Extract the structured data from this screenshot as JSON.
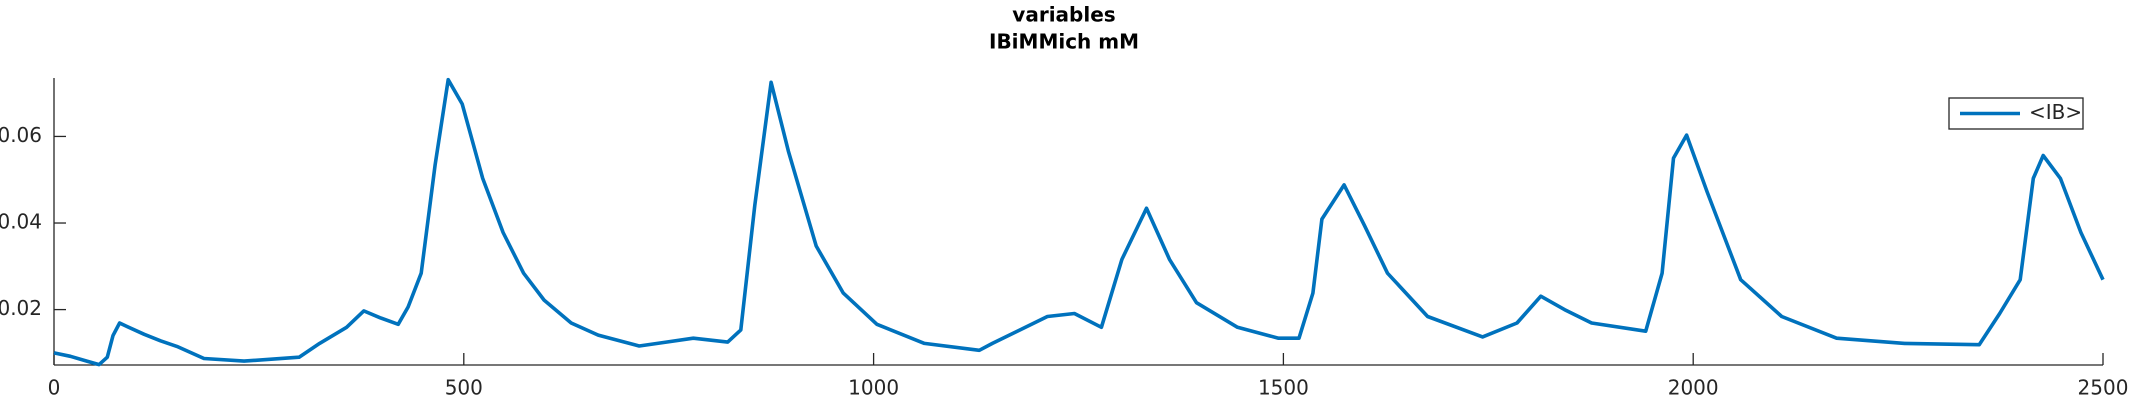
{
  "chart_data": {
    "type": "line",
    "title": "variables",
    "subtitle": "IBiMMich mM",
    "x": [
      0,
      20,
      40,
      55,
      65,
      72,
      80,
      90,
      110,
      130,
      150,
      183,
      232,
      299,
      324,
      357,
      378,
      398,
      420,
      432,
      448,
      465,
      481,
      498,
      523,
      548,
      573,
      598,
      631,
      664,
      714,
      747,
      780,
      822,
      838,
      855,
      875,
      896,
      930,
      963,
      1004,
      1062,
      1129,
      1145,
      1212,
      1245,
      1278,
      1303,
      1333,
      1361,
      1394,
      1444,
      1494,
      1519,
      1536,
      1547,
      1574,
      1599,
      1627,
      1676,
      1743,
      1785,
      1814,
      1843,
      1876,
      1942,
      1962,
      1976,
      1992,
      2017,
      2058,
      2108,
      2175,
      2258,
      2349,
      2374,
      2399,
      2415,
      2427,
      2448,
      2473,
      2500
    ],
    "series": [
      {
        "name": "<IB>",
        "color": "#0072bd",
        "values": [
          0.01,
          0.0092,
          0.0081,
          0.0073,
          0.009,
          0.014,
          0.0169,
          0.016,
          0.0143,
          0.0128,
          0.0115,
          0.0087,
          0.0081,
          0.009,
          0.0122,
          0.0159,
          0.0197,
          0.0181,
          0.0166,
          0.0206,
          0.0284,
          0.0534,
          0.0731,
          0.0675,
          0.0503,
          0.0378,
          0.0284,
          0.0222,
          0.0169,
          0.0141,
          0.0116,
          0.0125,
          0.0134,
          0.0125,
          0.0153,
          0.0441,
          0.0725,
          0.0566,
          0.0347,
          0.0238,
          0.0166,
          0.0122,
          0.0106,
          0.0122,
          0.0184,
          0.0191,
          0.0159,
          0.0316,
          0.0434,
          0.0316,
          0.0216,
          0.0159,
          0.0134,
          0.0134,
          0.0238,
          0.0409,
          0.0488,
          0.0394,
          0.0284,
          0.0184,
          0.0137,
          0.0169,
          0.0231,
          0.02,
          0.0169,
          0.015,
          0.0284,
          0.055,
          0.0603,
          0.0472,
          0.0269,
          0.0184,
          0.0134,
          0.0122,
          0.0119,
          0.0191,
          0.0269,
          0.0503,
          0.0556,
          0.0503,
          0.0378,
          0.0269
        ]
      }
    ],
    "xlim": [
      0,
      2500
    ],
    "xticks": [
      0,
      500,
      1000,
      1500,
      2000,
      2500
    ],
    "ylim": [
      0.0072,
      0.0735
    ],
    "yticks": [
      0.02,
      0.04,
      0.06
    ],
    "legend": "upper right"
  }
}
